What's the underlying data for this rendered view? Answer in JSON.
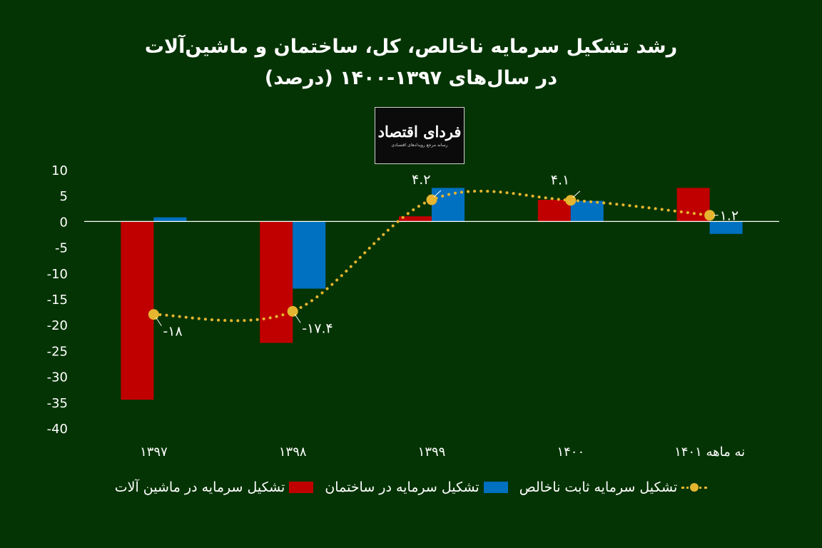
{
  "chart_data": {
    "type": "bar",
    "title_line1": "رشد تشکیل سرمایه ناخالص، کل، ساختمان و ماشین‌آلات",
    "title_line2": "در سال‌های ۱۳۹۷-۱۴۰۰ (درصد)",
    "categories": [
      "۱۳۹۷",
      "۱۳۹۸",
      "۱۳۹۹",
      "۱۴۰۰",
      "نه ماهه ۱۴۰۱"
    ],
    "ylim": [
      -40,
      10
    ],
    "yticks": [
      10,
      5,
      0,
      -5,
      -10,
      -15,
      -20,
      -25,
      -30,
      -35,
      -40
    ],
    "ytick_labels": [
      "10",
      "5",
      "0",
      "-5",
      "-10",
      "-15",
      "-20",
      "-25",
      "-30",
      "-35",
      "-40"
    ],
    "series": [
      {
        "name": "تشکیل سرمایه در ماشین آلات",
        "type": "bar",
        "color": "#c00000",
        "values": [
          -34.5,
          -23.5,
          1,
          4.2,
          6.5
        ]
      },
      {
        "name": "تشکیل سرمایه در ساختمان",
        "type": "bar",
        "color": "#0070c0",
        "values": [
          0.8,
          -13,
          6.5,
          4,
          -2.4
        ]
      },
      {
        "name": "تشکیل سرمایه ثابت ناخالص",
        "type": "line",
        "color": "#e5b52f",
        "values": [
          -18,
          -17.4,
          4.2,
          4.1,
          1.2
        ],
        "labels": [
          "-۱۸",
          "-۱۷.۴",
          "۴.۲",
          "۴.۱",
          "۱.۲"
        ]
      }
    ],
    "grid": false,
    "legend_position": "bottom"
  },
  "logo": {
    "main": "فردای اقتصاد",
    "sub": "رسانه مرجع رویدادهای اقتصادی"
  }
}
